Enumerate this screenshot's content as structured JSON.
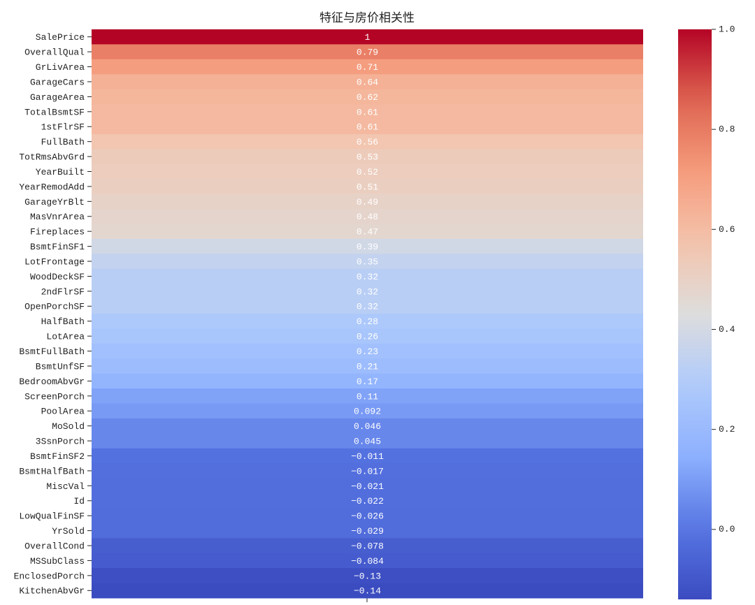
{
  "chart_data": {
    "type": "heatmap",
    "title": "特征与房价相关性",
    "colormap": "coolwarm",
    "categories": [
      "SalePrice",
      "OverallQual",
      "GrLivArea",
      "GarageCars",
      "GarageArea",
      "TotalBsmtSF",
      "1stFlrSF",
      "FullBath",
      "TotRmsAbvGrd",
      "YearBuilt",
      "YearRemodAdd",
      "GarageYrBlt",
      "MasVnrArea",
      "Fireplaces",
      "BsmtFinSF1",
      "LotFrontage",
      "WoodDeckSF",
      "2ndFlrSF",
      "OpenPorchSF",
      "HalfBath",
      "LotArea",
      "BsmtFullBath",
      "BsmtUnfSF",
      "BedroomAbvGr",
      "ScreenPorch",
      "PoolArea",
      "MoSold",
      "3SsnPorch",
      "BsmtFinSF2",
      "BsmtHalfBath",
      "MiscVal",
      "Id",
      "LowQualFinSF",
      "YrSold",
      "OverallCond",
      "MSSubClass",
      "EnclosedPorch",
      "KitchenAbvGr"
    ],
    "values": [
      1,
      0.79,
      0.71,
      0.64,
      0.62,
      0.61,
      0.61,
      0.56,
      0.53,
      0.52,
      0.51,
      0.49,
      0.48,
      0.47,
      0.39,
      0.35,
      0.32,
      0.32,
      0.32,
      0.28,
      0.26,
      0.23,
      0.21,
      0.17,
      0.11,
      0.092,
      0.046,
      0.045,
      -0.011,
      -0.017,
      -0.021,
      -0.022,
      -0.026,
      -0.029,
      -0.078,
      -0.084,
      -0.13,
      -0.14
    ],
    "value_labels": [
      "1",
      "0.79",
      "0.71",
      "0.64",
      "0.62",
      "0.61",
      "0.61",
      "0.56",
      "0.53",
      "0.52",
      "0.51",
      "0.49",
      "0.48",
      "0.47",
      "0.39",
      "0.35",
      "0.32",
      "0.32",
      "0.32",
      "0.28",
      "0.26",
      "0.23",
      "0.21",
      "0.17",
      "0.11",
      "0.092",
      "0.046",
      "0.045",
      "−0.011",
      "−0.017",
      "−0.021",
      "−0.022",
      "−0.026",
      "−0.029",
      "−0.078",
      "−0.084",
      "−0.13",
      "−0.14"
    ],
    "clim": [
      -0.14,
      1
    ],
    "cticks": [
      {
        "value": 0,
        "label": "0.0"
      },
      {
        "value": 0.2,
        "label": "0.2"
      },
      {
        "value": 0.4,
        "label": "0.4"
      },
      {
        "value": 0.6,
        "label": "0.6"
      },
      {
        "value": 0.8,
        "label": "0.8"
      },
      {
        "value": 1,
        "label": "1.0"
      }
    ]
  }
}
